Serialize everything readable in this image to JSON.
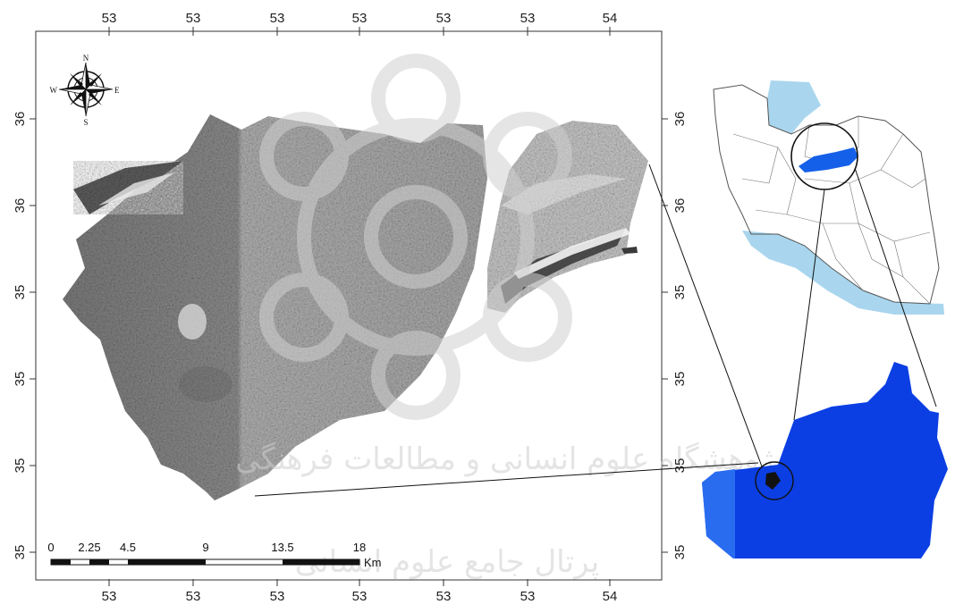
{
  "axes": {
    "top_ticks": [
      "53",
      "53",
      "53",
      "53",
      "53",
      "53",
      "54"
    ],
    "bottom_ticks": [
      "53",
      "53",
      "53",
      "53",
      "53",
      "53",
      "54"
    ],
    "left_ticks": [
      "36",
      "36",
      "35",
      "35",
      "35",
      "35"
    ],
    "right_ticks": [
      "36",
      "36",
      "35",
      "35",
      "35",
      "35"
    ]
  },
  "compass": {
    "north": "N",
    "south": "S",
    "east": "E",
    "west": "W",
    "icon": "compass-rose-icon"
  },
  "scale_bar": {
    "labels": [
      "0",
      "2.25",
      "4.5",
      "9",
      "13.5",
      "18"
    ],
    "unit": "Km"
  },
  "watermark": {
    "line1": "پژوهشگاه علوم انسانی و مطالعات فرهنگی",
    "line2": "پرتال جامع علوم انسانی",
    "icon": "institute-logo-icon"
  },
  "colors": {
    "province_fill": "#0b3fe3",
    "province_light": "#1e63f0",
    "water": "#a9d6ee",
    "hillshade_dark": "#6d6d6d",
    "hillshade_light": "#bdbdbd"
  }
}
